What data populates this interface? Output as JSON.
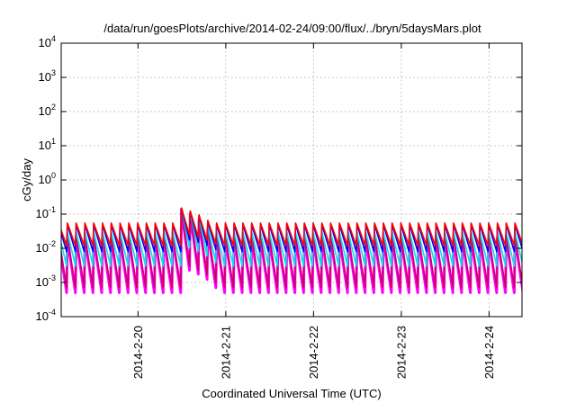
{
  "chart_data": {
    "type": "line",
    "title": "/data/run/goesPlots/archive/2014-02-24/09:00/flux/../bryn/5daysMars.plot",
    "xlabel": "Coordinated Universal Time (UTC)",
    "ylabel": "cGy/day",
    "yscale": "log",
    "ylim": [
      0.0001,
      10000
    ],
    "y_ticks": [
      {
        "base": "10",
        "exp": "4",
        "value": 10000
      },
      {
        "base": "10",
        "exp": "3",
        "value": 1000
      },
      {
        "base": "10",
        "exp": "2",
        "value": 100
      },
      {
        "base": "10",
        "exp": "1",
        "value": 10
      },
      {
        "base": "10",
        "exp": "0",
        "value": 1
      },
      {
        "base": "10",
        "exp": "-1",
        "value": 0.1
      },
      {
        "base": "10",
        "exp": "-2",
        "value": 0.01
      },
      {
        "base": "10",
        "exp": "-3",
        "value": 0.001
      },
      {
        "base": "10",
        "exp": "-4",
        "value": 0.0001
      }
    ],
    "x_range_days": [
      "2014-02-19T03:00",
      "2014-02-24T09:00"
    ],
    "x_ticks": [
      "2014-2-20",
      "2014-2-21",
      "2014-2-22",
      "2014-2-23",
      "2014-2-24"
    ],
    "grid": true,
    "sawtooth_period_hours": 2.4,
    "series": [
      {
        "color": "#ff00ff",
        "peak": 0.02,
        "trough": 0.0005
      },
      {
        "color": "#cc0066",
        "peak": 0.022,
        "trough": 0.0007
      },
      {
        "color": "#00e5e5",
        "peak": 0.03,
        "trough": 0.003
      },
      {
        "color": "#0000ff",
        "peak": 0.05,
        "trough": 0.008
      },
      {
        "color": "#ff0000",
        "peak": 0.055,
        "trough": 0.012
      }
    ],
    "event": {
      "time": "2014-02-20T12:00",
      "peak": 0.15
    }
  }
}
